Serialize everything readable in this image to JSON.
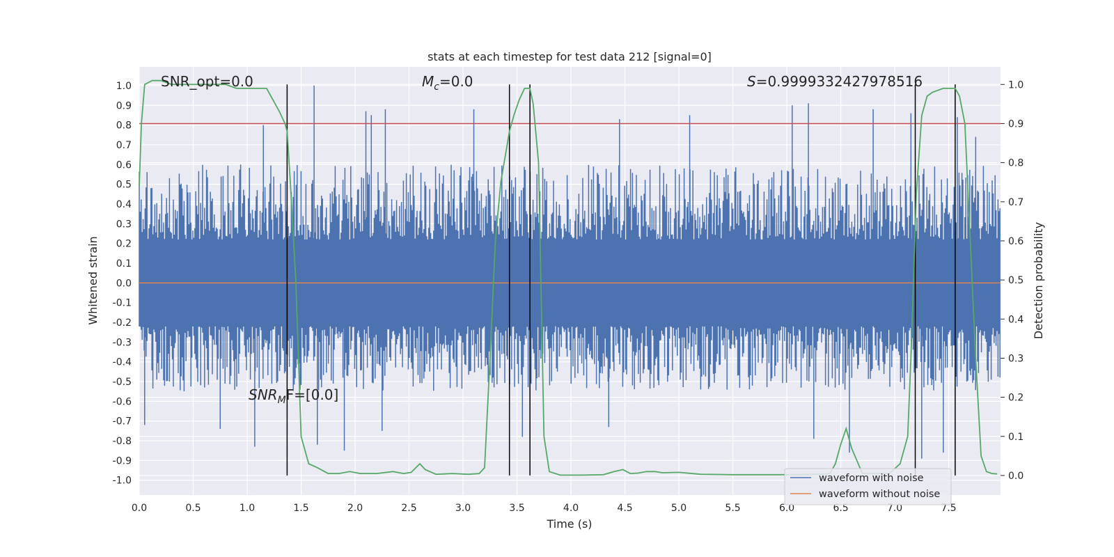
{
  "chart_data": {
    "type": "line",
    "title": "stats at each timestep for test data 212 [signal=0]",
    "xlabel": "Time (s)",
    "ylabel_left": "Whitened strain",
    "ylabel_right": "Detection probability",
    "xlim": [
      0.0,
      7.98
    ],
    "ylim_left": [
      -1.075,
      1.095
    ],
    "ylim_right": [
      -0.05,
      1.045
    ],
    "x_ticks": [
      "0.0",
      "0.5",
      "1.0",
      "1.5",
      "2.0",
      "2.5",
      "3.0",
      "3.5",
      "4.0",
      "4.5",
      "5.0",
      "5.5",
      "6.0",
      "6.5",
      "7.0",
      "7.5"
    ],
    "y_ticks_left": [
      "1.0",
      "0.9",
      "0.8",
      "0.7",
      "0.6",
      "0.5",
      "0.4",
      "0.3",
      "0.2",
      "0.1",
      "0.0",
      "-0.1",
      "-0.2",
      "-0.3",
      "-0.4",
      "-0.5",
      "-0.6",
      "-0.7",
      "-0.8",
      "-0.9",
      "-1.0"
    ],
    "y_ticks_right": [
      "1.0",
      "0.9",
      "0.8",
      "0.7",
      "0.6",
      "0.5",
      "0.4",
      "0.3",
      "0.2",
      "0.1",
      "0.0"
    ],
    "grid": true,
    "legend_position": "lower-right",
    "annotations": {
      "snr_opt": "SNR_opt=0.0",
      "mc_symbol": "M",
      "mc_sub": "c",
      "mc_value": "=0.0",
      "s_symbol": "S",
      "s_value": "=0.9999332427978516",
      "snr_mf_symbol": "SNR",
      "snr_mf_sub": "M",
      "snr_mf_value": "F=[0.0]"
    },
    "threshold_right_axis": 0.9,
    "vertical_lines_x": [
      1.37,
      3.43,
      3.62,
      7.19,
      7.56
    ],
    "noise_envelope": {
      "typical_max": 0.6,
      "typical_min": -0.55,
      "spikes": [
        {
          "x": 1.15,
          "y": 0.8
        },
        {
          "x": 1.62,
          "y": 1.0
        },
        {
          "x": 2.1,
          "y": 0.87
        },
        {
          "x": 2.15,
          "y": 0.85
        },
        {
          "x": 2.28,
          "y": 0.88
        },
        {
          "x": 3.1,
          "y": 0.88
        },
        {
          "x": 4.45,
          "y": 0.83
        },
        {
          "x": 5.1,
          "y": 0.85
        },
        {
          "x": 6.05,
          "y": 0.9
        },
        {
          "x": 6.2,
          "y": 0.91
        },
        {
          "x": 6.8,
          "y": 0.88
        },
        {
          "x": 7.15,
          "y": 0.86
        },
        {
          "x": 7.58,
          "y": 0.84
        },
        {
          "x": 7.75,
          "y": 0.74
        },
        {
          "x": 0.05,
          "y": -0.72
        },
        {
          "x": 0.75,
          "y": -0.74
        },
        {
          "x": 1.07,
          "y": -0.83
        },
        {
          "x": 1.65,
          "y": -0.82
        },
        {
          "x": 1.9,
          "y": -0.85
        },
        {
          "x": 2.25,
          "y": -0.75
        },
        {
          "x": 3.55,
          "y": -0.78
        },
        {
          "x": 4.35,
          "y": -0.73
        },
        {
          "x": 6.25,
          "y": -0.79
        },
        {
          "x": 6.58,
          "y": -0.86
        },
        {
          "x": 7.25,
          "y": -0.89
        },
        {
          "x": 7.45,
          "y": -0.86
        }
      ]
    },
    "series": [
      {
        "name": "waveform with noise",
        "color": "#4c72b0",
        "kind": "noise"
      },
      {
        "name": "waveform without noise",
        "color": "#dd8452",
        "x": [
          0.0,
          7.98
        ],
        "y": [
          0.0,
          0.0
        ]
      },
      {
        "name": "",
        "color": "#55a868",
        "axis": "right",
        "x": [
          0.0,
          0.02,
          0.05,
          0.12,
          0.2,
          0.3,
          0.4,
          0.5,
          0.6,
          0.7,
          0.8,
          0.9,
          1.0,
          1.1,
          1.18,
          1.24,
          1.3,
          1.35,
          1.37,
          1.4,
          1.45,
          1.5,
          1.57,
          1.65,
          1.75,
          1.85,
          1.95,
          2.05,
          2.2,
          2.35,
          2.45,
          2.52,
          2.6,
          2.65,
          2.75,
          2.9,
          3.05,
          3.15,
          3.2,
          3.25,
          3.3,
          3.35,
          3.43,
          3.47,
          3.52,
          3.57,
          3.62,
          3.65,
          3.7,
          3.75,
          3.8,
          3.9,
          4.1,
          4.3,
          4.4,
          4.48,
          4.55,
          4.62,
          4.7,
          4.78,
          4.85,
          5.0,
          5.2,
          5.5,
          5.8,
          6.1,
          6.3,
          6.4,
          6.45,
          6.5,
          6.55,
          6.6,
          6.7,
          6.8,
          6.95,
          7.05,
          7.12,
          7.15,
          7.2,
          7.25,
          7.3,
          7.35,
          7.45,
          7.5,
          7.56,
          7.6,
          7.65,
          7.7,
          7.75,
          7.8,
          7.85,
          7.9,
          7.95
        ],
        "y": [
          0.74,
          0.9,
          1.0,
          1.01,
          1.01,
          1.0,
          1.0,
          1.0,
          1.0,
          1.0,
          1.0,
          0.99,
          0.99,
          0.99,
          0.99,
          0.96,
          0.93,
          0.9,
          0.88,
          0.75,
          0.5,
          0.1,
          0.03,
          0.02,
          0.005,
          0.005,
          0.01,
          0.005,
          0.005,
          0.01,
          0.005,
          0.008,
          0.03,
          0.015,
          0.003,
          0.005,
          0.003,
          0.005,
          0.02,
          0.3,
          0.6,
          0.75,
          0.88,
          0.92,
          0.96,
          0.99,
          0.99,
          0.95,
          0.8,
          0.1,
          0.01,
          0.001,
          0.001,
          0.002,
          0.01,
          0.015,
          0.005,
          0.006,
          0.01,
          0.01,
          0.007,
          0.008,
          0.003,
          0.002,
          0.002,
          0.002,
          0.003,
          0.005,
          0.03,
          0.08,
          0.12,
          0.07,
          0.005,
          0.005,
          0.005,
          0.03,
          0.1,
          0.3,
          0.72,
          0.92,
          0.97,
          0.98,
          0.99,
          0.99,
          0.99,
          0.97,
          0.9,
          0.6,
          0.3,
          0.05,
          0.01,
          0.005,
          0.004
        ]
      }
    ]
  }
}
